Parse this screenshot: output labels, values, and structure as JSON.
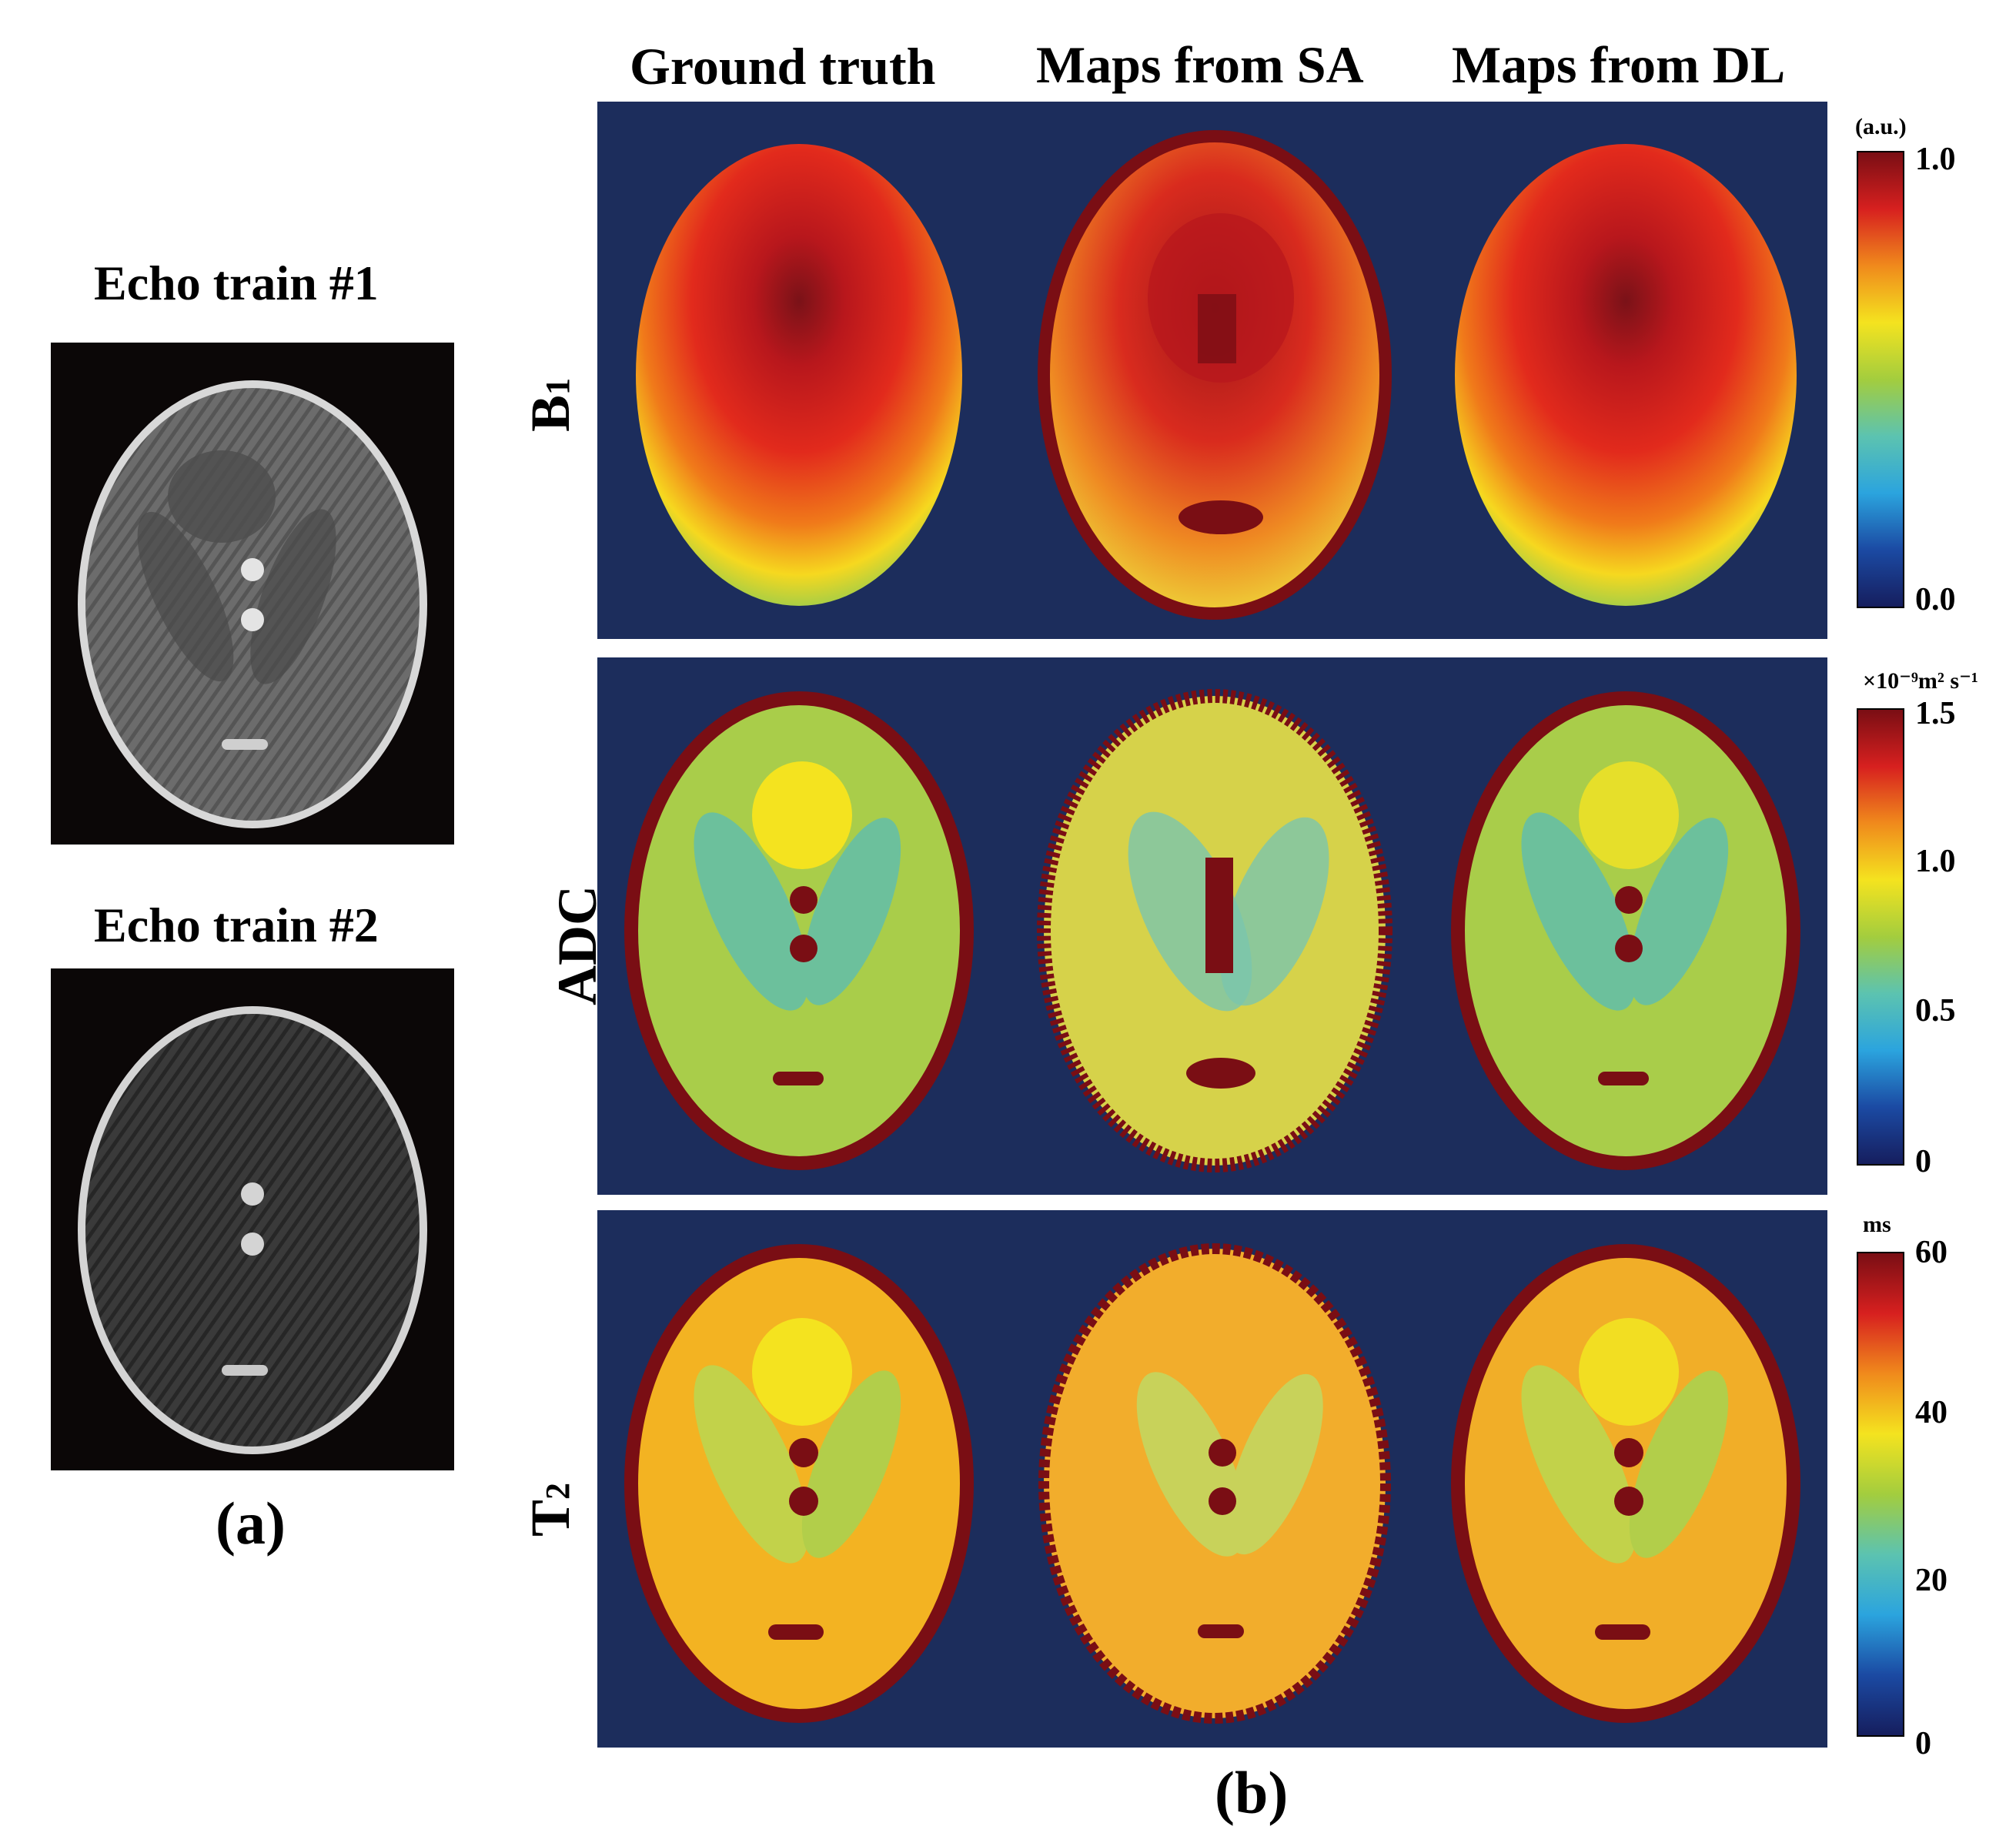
{
  "panel_a": {
    "echo_titles": [
      "Echo train #1",
      "Echo train #2"
    ],
    "label": "(a)"
  },
  "panel_b": {
    "column_headers": [
      "Ground truth",
      "Maps from SA",
      "Maps from DL"
    ],
    "rows": [
      {
        "label": "B1",
        "label_main": "B",
        "label_sub": "1",
        "unit": "(a.u.)",
        "ticks": [
          "1.0",
          "0.0"
        ]
      },
      {
        "label": "ADC",
        "label_main": "ADC",
        "label_sub": "",
        "unit": "×10⁻⁹m² s⁻¹",
        "ticks": [
          "1.5",
          "1.0",
          "0.5",
          "0"
        ]
      },
      {
        "label": "T2",
        "label_main": "T",
        "label_sub": "2",
        "unit": "ms",
        "ticks": [
          "60",
          "40",
          "20",
          "0"
        ]
      }
    ],
    "label": "(b)"
  },
  "colors": {
    "background_blue": "#1c2d5c",
    "jet": [
      "#7a0e14",
      "#d7201f",
      "#f08a1c",
      "#f4e31f",
      "#a3cd3e",
      "#5cc3b0",
      "#2ba4de",
      "#1b4aa3",
      "#161e5e"
    ]
  }
}
